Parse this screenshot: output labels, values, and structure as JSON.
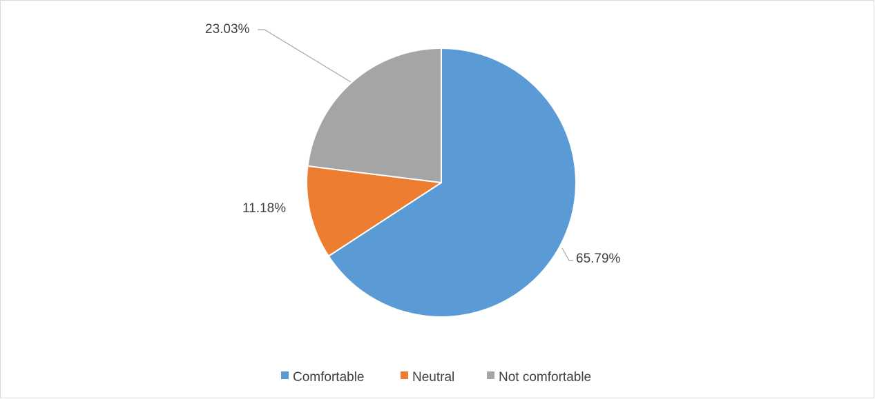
{
  "chart_data": {
    "type": "pie",
    "title": "",
    "categories": [
      "Comfortable",
      "Neutral",
      "Not comfortable"
    ],
    "values": [
      65.79,
      11.18,
      23.03
    ],
    "data_labels": [
      "65.79%",
      "11.18%",
      "23.03%"
    ],
    "colors": [
      "#5B9BD5",
      "#ED7D31",
      "#A5A5A5"
    ],
    "start_angle_deg": 0,
    "direction": "clockwise",
    "legend": {
      "position": "bottom",
      "items": [
        {
          "label": "Comfortable",
          "color": "#5B9BD5"
        },
        {
          "label": "Neutral",
          "color": "#ED7D31"
        },
        {
          "label": "Not comfortable",
          "color": "#A5A5A5"
        }
      ]
    }
  }
}
